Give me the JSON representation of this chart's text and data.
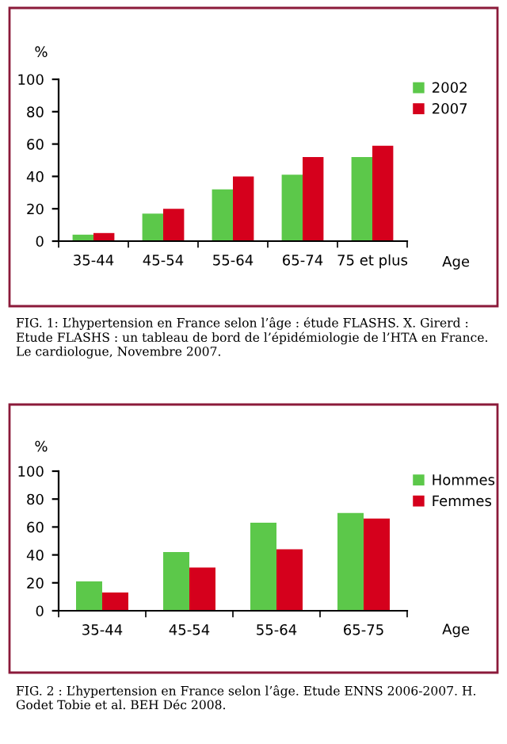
{
  "chart_data": [
    {
      "type": "bar",
      "ylabel": "%",
      "xlabel": "Age",
      "categories": [
        "35-44",
        "45-54",
        "55-64",
        "65-74",
        "75 et plus"
      ],
      "series": [
        {
          "name": "2002",
          "color": "#5cc84a",
          "values": [
            4,
            17,
            32,
            41,
            52
          ]
        },
        {
          "name": "2007",
          "color": "#d5001c",
          "values": [
            5,
            20,
            40,
            52,
            59
          ]
        }
      ],
      "ylim": [
        0,
        100
      ],
      "yticks": [
        0,
        20,
        40,
        60,
        80,
        100
      ],
      "grid": false,
      "legend": "top right",
      "annotations": [
        "FIG. 1: L’hypertension en France selon l’âge : étude FLASHS. X. Girerd : Etude FLASHS : un tableau de bord de l’épidémiologie de l’HTA en France. Le cardiologue, Novembre 2007."
      ]
    },
    {
      "type": "bar",
      "ylabel": "%",
      "xlabel": "Age",
      "categories": [
        "35-44",
        "45-54",
        "55-64",
        "65-75"
      ],
      "series": [
        {
          "name": "Hommes",
          "color": "#5cc84a",
          "values": [
            21,
            42,
            63,
            70
          ]
        },
        {
          "name": "Femmes",
          "color": "#d5001c",
          "values": [
            13,
            31,
            44,
            66
          ]
        }
      ],
      "ylim": [
        0,
        100
      ],
      "yticks": [
        0,
        20,
        40,
        60,
        80,
        100
      ],
      "grid": false,
      "legend": "top right",
      "annotations": [
        "FIG. 2 : L’hypertension en France selon l’âge. Etude ENNS 2006-2007. H. Godet Tobie et al. BEH Déc 2008."
      ]
    }
  ]
}
